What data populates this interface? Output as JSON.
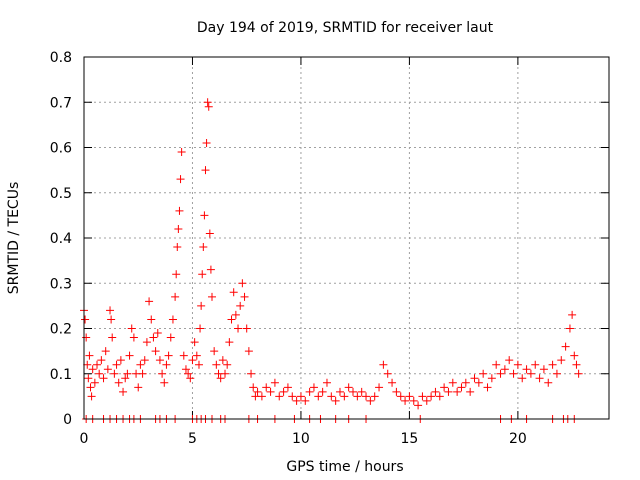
{
  "chart_data": {
    "type": "scatter",
    "title": "Day 194 of 2019, SRMTID for receiver laut",
    "xlabel": "GPS time / hours",
    "ylabel": "SRMTID / TECUs",
    "xlim": [
      0,
      24.2
    ],
    "ylim": [
      0,
      0.8
    ],
    "x_ticks": [
      0,
      5,
      10,
      15,
      20
    ],
    "y_ticks": [
      0,
      0.1,
      0.2,
      0.3,
      0.4,
      0.5,
      0.6,
      0.7,
      0.8
    ],
    "x_tick_labels": [
      "0",
      "5",
      "10",
      "15",
      "20"
    ],
    "y_tick_labels": [
      "0",
      "0.1",
      "0.2",
      "0.3",
      "0.4",
      "0.5",
      "0.6",
      "0.7",
      "0.8"
    ],
    "grid": true,
    "marker": "+",
    "color": "#ff0000",
    "series": [
      {
        "name": "SRMTID",
        "points": [
          [
            0.0,
            0.24
          ],
          [
            0.05,
            0.22
          ],
          [
            0.1,
            0.18
          ],
          [
            0.15,
            0.12
          ],
          [
            0.2,
            0.09
          ],
          [
            0.25,
            0.14
          ],
          [
            0.3,
            0.07
          ],
          [
            0.35,
            0.05
          ],
          [
            0.4,
            0.11
          ],
          [
            0.5,
            0.08
          ],
          [
            0.6,
            0.12
          ],
          [
            0.7,
            0.1
          ],
          [
            0.8,
            0.13
          ],
          [
            0.9,
            0.09
          ],
          [
            1.0,
            0.15
          ],
          [
            1.1,
            0.11
          ],
          [
            1.2,
            0.24
          ],
          [
            1.25,
            0.22
          ],
          [
            1.3,
            0.18
          ],
          [
            1.4,
            0.1
          ],
          [
            1.5,
            0.12
          ],
          [
            1.6,
            0.08
          ],
          [
            1.7,
            0.13
          ],
          [
            1.8,
            0.06
          ],
          [
            1.9,
            0.09
          ],
          [
            2.0,
            0.1
          ],
          [
            2.1,
            0.14
          ],
          [
            2.2,
            0.2
          ],
          [
            2.3,
            0.18
          ],
          [
            2.4,
            0.1
          ],
          [
            2.5,
            0.07
          ],
          [
            2.6,
            0.12
          ],
          [
            2.7,
            0.1
          ],
          [
            2.8,
            0.13
          ],
          [
            2.9,
            0.17
          ],
          [
            3.0,
            0.26
          ],
          [
            3.1,
            0.22
          ],
          [
            3.2,
            0.18
          ],
          [
            3.3,
            0.15
          ],
          [
            3.4,
            0.19
          ],
          [
            3.5,
            0.13
          ],
          [
            3.6,
            0.1
          ],
          [
            3.7,
            0.08
          ],
          [
            3.8,
            0.12
          ],
          [
            3.9,
            0.14
          ],
          [
            4.0,
            0.18
          ],
          [
            4.1,
            0.22
          ],
          [
            4.2,
            0.27
          ],
          [
            4.25,
            0.32
          ],
          [
            4.3,
            0.38
          ],
          [
            4.35,
            0.42
          ],
          [
            4.4,
            0.46
          ],
          [
            4.45,
            0.53
          ],
          [
            4.5,
            0.59
          ],
          [
            4.6,
            0.14
          ],
          [
            4.7,
            0.11
          ],
          [
            4.8,
            0.1
          ],
          [
            4.9,
            0.09
          ],
          [
            5.0,
            0.13
          ],
          [
            5.1,
            0.17
          ],
          [
            5.2,
            0.14
          ],
          [
            5.3,
            0.12
          ],
          [
            5.35,
            0.2
          ],
          [
            5.4,
            0.25
          ],
          [
            5.45,
            0.32
          ],
          [
            5.5,
            0.38
          ],
          [
            5.55,
            0.45
          ],
          [
            5.6,
            0.55
          ],
          [
            5.65,
            0.61
          ],
          [
            5.7,
            0.7
          ],
          [
            5.75,
            0.69
          ],
          [
            5.8,
            0.41
          ],
          [
            5.85,
            0.33
          ],
          [
            5.9,
            0.27
          ],
          [
            6.0,
            0.15
          ],
          [
            6.1,
            0.12
          ],
          [
            6.2,
            0.1
          ],
          [
            6.3,
            0.09
          ],
          [
            6.4,
            0.13
          ],
          [
            6.5,
            0.1
          ],
          [
            6.6,
            0.12
          ],
          [
            6.7,
            0.17
          ],
          [
            6.8,
            0.22
          ],
          [
            6.9,
            0.28
          ],
          [
            7.0,
            0.23
          ],
          [
            7.1,
            0.2
          ],
          [
            7.2,
            0.25
          ],
          [
            7.3,
            0.3
          ],
          [
            7.4,
            0.27
          ],
          [
            7.5,
            0.2
          ],
          [
            7.6,
            0.15
          ],
          [
            7.7,
            0.1
          ],
          [
            7.8,
            0.07
          ],
          [
            7.9,
            0.05
          ],
          [
            8.0,
            0.06
          ],
          [
            8.2,
            0.05
          ],
          [
            8.4,
            0.07
          ],
          [
            8.6,
            0.06
          ],
          [
            8.8,
            0.08
          ],
          [
            9.0,
            0.05
          ],
          [
            9.2,
            0.06
          ],
          [
            9.4,
            0.07
          ],
          [
            9.6,
            0.05
          ],
          [
            9.8,
            0.04
          ],
          [
            10.0,
            0.05
          ],
          [
            10.2,
            0.04
          ],
          [
            10.4,
            0.06
          ],
          [
            10.6,
            0.07
          ],
          [
            10.8,
            0.05
          ],
          [
            11.0,
            0.06
          ],
          [
            11.2,
            0.08
          ],
          [
            11.4,
            0.05
          ],
          [
            11.6,
            0.04
          ],
          [
            11.8,
            0.06
          ],
          [
            12.0,
            0.05
          ],
          [
            12.2,
            0.07
          ],
          [
            12.4,
            0.06
          ],
          [
            12.6,
            0.05
          ],
          [
            12.8,
            0.06
          ],
          [
            13.0,
            0.05
          ],
          [
            13.2,
            0.04
          ],
          [
            13.4,
            0.05
          ],
          [
            13.6,
            0.07
          ],
          [
            13.8,
            0.12
          ],
          [
            14.0,
            0.1
          ],
          [
            14.2,
            0.08
          ],
          [
            14.4,
            0.06
          ],
          [
            14.6,
            0.05
          ],
          [
            14.8,
            0.04
          ],
          [
            15.0,
            0.05
          ],
          [
            15.2,
            0.04
          ],
          [
            15.4,
            0.03
          ],
          [
            15.6,
            0.05
          ],
          [
            15.8,
            0.04
          ],
          [
            16.0,
            0.05
          ],
          [
            16.2,
            0.06
          ],
          [
            16.4,
            0.05
          ],
          [
            16.6,
            0.07
          ],
          [
            16.8,
            0.06
          ],
          [
            17.0,
            0.08
          ],
          [
            17.2,
            0.06
          ],
          [
            17.4,
            0.07
          ],
          [
            17.6,
            0.08
          ],
          [
            17.8,
            0.06
          ],
          [
            18.0,
            0.09
          ],
          [
            18.2,
            0.08
          ],
          [
            18.4,
            0.1
          ],
          [
            18.6,
            0.07
          ],
          [
            18.8,
            0.09
          ],
          [
            19.0,
            0.12
          ],
          [
            19.2,
            0.1
          ],
          [
            19.4,
            0.11
          ],
          [
            19.6,
            0.13
          ],
          [
            19.8,
            0.1
          ],
          [
            20.0,
            0.12
          ],
          [
            20.2,
            0.09
          ],
          [
            20.4,
            0.11
          ],
          [
            20.6,
            0.1
          ],
          [
            20.8,
            0.12
          ],
          [
            21.0,
            0.09
          ],
          [
            21.2,
            0.11
          ],
          [
            21.4,
            0.08
          ],
          [
            21.6,
            0.12
          ],
          [
            21.8,
            0.1
          ],
          [
            22.0,
            0.13
          ],
          [
            22.2,
            0.16
          ],
          [
            22.4,
            0.2
          ],
          [
            22.5,
            0.23
          ],
          [
            22.6,
            0.14
          ],
          [
            22.7,
            0.12
          ],
          [
            22.8,
            0.1
          ]
        ]
      }
    ],
    "zero_points_x": [
      0.1,
      0.4,
      0.9,
      1.2,
      1.5,
      1.8,
      2.1,
      2.3,
      2.6,
      3.3,
      3.5,
      3.8,
      4.2,
      5.0,
      5.2,
      5.4,
      5.6,
      5.9,
      6.3,
      6.5,
      7.6,
      8.0,
      8.8,
      9.7,
      10.4,
      10.9,
      11.6,
      12.2,
      13.0,
      15.5,
      19.2,
      19.7,
      20.4,
      21.6,
      22.1,
      22.3,
      22.6
    ]
  }
}
